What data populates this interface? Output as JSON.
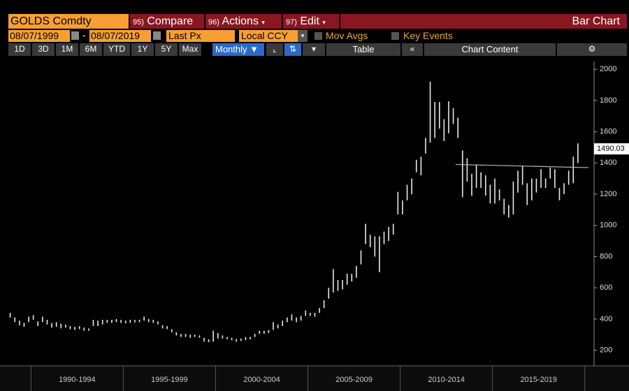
{
  "toolbar": {
    "ticker": "GOLDS Comdty",
    "menus": [
      {
        "key": "95)",
        "label": "Compare"
      },
      {
        "key": "96)",
        "label": "Actions"
      },
      {
        "key": "97)",
        "label": "Edit"
      }
    ],
    "title": "Bar Chart"
  },
  "range": {
    "start": "08/07/1999",
    "end": "08/07/2019",
    "field": "Last Px",
    "currency": "Local CCY",
    "options": [
      "Mov Avgs",
      "Key Events"
    ]
  },
  "periods": [
    "1D",
    "3D",
    "1M",
    "6M",
    "YTD",
    "1Y",
    "5Y",
    "Max"
  ],
  "frequency": "Monthly",
  "table": "Table",
  "content": "Chart Content",
  "chart_data": {
    "type": "ohlc",
    "color": "#e8e8e8",
    "x": [
      1988.875,
      1989.125,
      1989.375,
      1989.625,
      1989.875,
      1990.125,
      1990.375,
      1990.625,
      1990.875,
      1991.125,
      1991.375,
      1991.625,
      1991.875,
      1992.125,
      1992.375,
      1992.625,
      1992.875,
      1993.125,
      1993.375,
      1993.625,
      1993.875,
      1994.125,
      1994.375,
      1994.625,
      1994.875,
      1995.125,
      1995.375,
      1995.625,
      1995.875,
      1996.125,
      1996.375,
      1996.625,
      1996.875,
      1997.125,
      1997.375,
      1997.625,
      1997.875,
      1998.125,
      1998.375,
      1998.625,
      1998.875,
      1999.125,
      1999.375,
      1999.625,
      1999.875,
      2000.125,
      2000.375,
      2000.625,
      2000.875,
      2001.125,
      2001.375,
      2001.625,
      2001.875,
      2002.125,
      2002.375,
      2002.625,
      2002.875,
      2003.125,
      2003.375,
      2003.625,
      2003.875,
      2004.125,
      2004.375,
      2004.625,
      2004.875,
      2005.125,
      2005.375,
      2005.625,
      2005.875,
      2006.125,
      2006.375,
      2006.625,
      2006.875,
      2007.125,
      2007.375,
      2007.625,
      2007.875,
      2008.125,
      2008.375,
      2008.625,
      2008.875,
      2009.125,
      2009.375,
      2009.625,
      2009.875,
      2010.125,
      2010.375,
      2010.625,
      2010.875,
      2011.125,
      2011.375,
      2011.625,
      2011.875,
      2012.125,
      2012.375,
      2012.625,
      2012.875,
      2013.125,
      2013.375,
      2013.625,
      2013.875,
      2014.125,
      2014.375,
      2014.625,
      2014.875,
      2015.125,
      2015.375,
      2015.625,
      2015.875,
      2016.125,
      2016.375,
      2016.625,
      2016.875,
      2017.125,
      2017.375,
      2017.625,
      2017.875,
      2018.125,
      2018.375,
      2018.625,
      2018.875,
      2019.125,
      2019.375,
      2019.625
    ],
    "low": [
      410,
      380,
      360,
      350,
      380,
      395,
      355,
      380,
      365,
      345,
      350,
      340,
      345,
      335,
      330,
      335,
      325,
      325,
      355,
      355,
      365,
      375,
      375,
      380,
      375,
      372,
      375,
      378,
      380,
      390,
      380,
      375,
      365,
      340,
      335,
      315,
      295,
      285,
      285,
      280,
      285,
      280,
      255,
      252,
      255,
      275,
      275,
      270,
      265,
      255,
      260,
      265,
      270,
      285,
      305,
      305,
      310,
      330,
      340,
      355,
      380,
      390,
      380,
      390,
      420,
      420,
      415,
      440,
      470,
      530,
      570,
      580,
      590,
      620,
      640,
      665,
      750,
      880,
      860,
      800,
      700,
      880,
      900,
      940,
      1070,
      1070,
      1160,
      1200,
      1340,
      1320,
      1460,
      1530,
      1560,
      1620,
      1540,
      1590,
      1650,
      1560,
      1180,
      1280,
      1190,
      1240,
      1240,
      1190,
      1140,
      1140,
      1160,
      1070,
      1050,
      1070,
      1210,
      1260,
      1130,
      1160,
      1210,
      1240,
      1240,
      1300,
      1240,
      1160,
      1200,
      1260,
      1270,
      1400
    ],
    "high": [
      440,
      410,
      390,
      375,
      415,
      425,
      385,
      415,
      395,
      375,
      380,
      370,
      365,
      355,
      350,
      355,
      345,
      340,
      395,
      390,
      395,
      395,
      395,
      400,
      395,
      390,
      395,
      395,
      395,
      415,
      400,
      395,
      385,
      360,
      355,
      335,
      315,
      305,
      305,
      300,
      300,
      295,
      280,
      270,
      325,
      310,
      295,
      285,
      280,
      272,
      275,
      285,
      285,
      305,
      325,
      325,
      330,
      380,
      365,
      390,
      410,
      430,
      410,
      420,
      455,
      440,
      440,
      470,
      520,
      600,
      720,
      650,
      650,
      690,
      690,
      740,
      840,
      1010,
      940,
      930,
      930,
      960,
      990,
      1010,
      1215,
      1160,
      1260,
      1300,
      1420,
      1440,
      1560,
      1920,
      1790,
      1790,
      1680,
      1795,
      1750,
      1690,
      1480,
      1430,
      1330,
      1390,
      1340,
      1320,
      1260,
      1300,
      1230,
      1170,
      1130,
      1280,
      1350,
      1380,
      1270,
      1300,
      1300,
      1360,
      1300,
      1370,
      1360,
      1240,
      1270,
      1350,
      1440,
      1525
    ],
    "trendline": {
      "x": [
        2013.0,
        2020.2
      ],
      "y": [
        1390,
        1370
      ]
    },
    "last_value": 1490.03,
    "xlim": [
      1988.7,
      2020.5
    ],
    "ylim": [
      100,
      2050
    ],
    "yticks": [
      200,
      400,
      600,
      800,
      1000,
      1200,
      1400,
      1600,
      1800,
      2000
    ],
    "xticks": [
      {
        "value": 1992.5,
        "label": "1990-1994"
      },
      {
        "value": 1997.5,
        "label": "1995-1999"
      },
      {
        "value": 2002.5,
        "label": "2000-2004"
      },
      {
        "value": 2007.5,
        "label": "2005-2009"
      },
      {
        "value": 2012.5,
        "label": "2010-2014"
      },
      {
        "value": 2017.5,
        "label": "2015-2019"
      }
    ]
  }
}
